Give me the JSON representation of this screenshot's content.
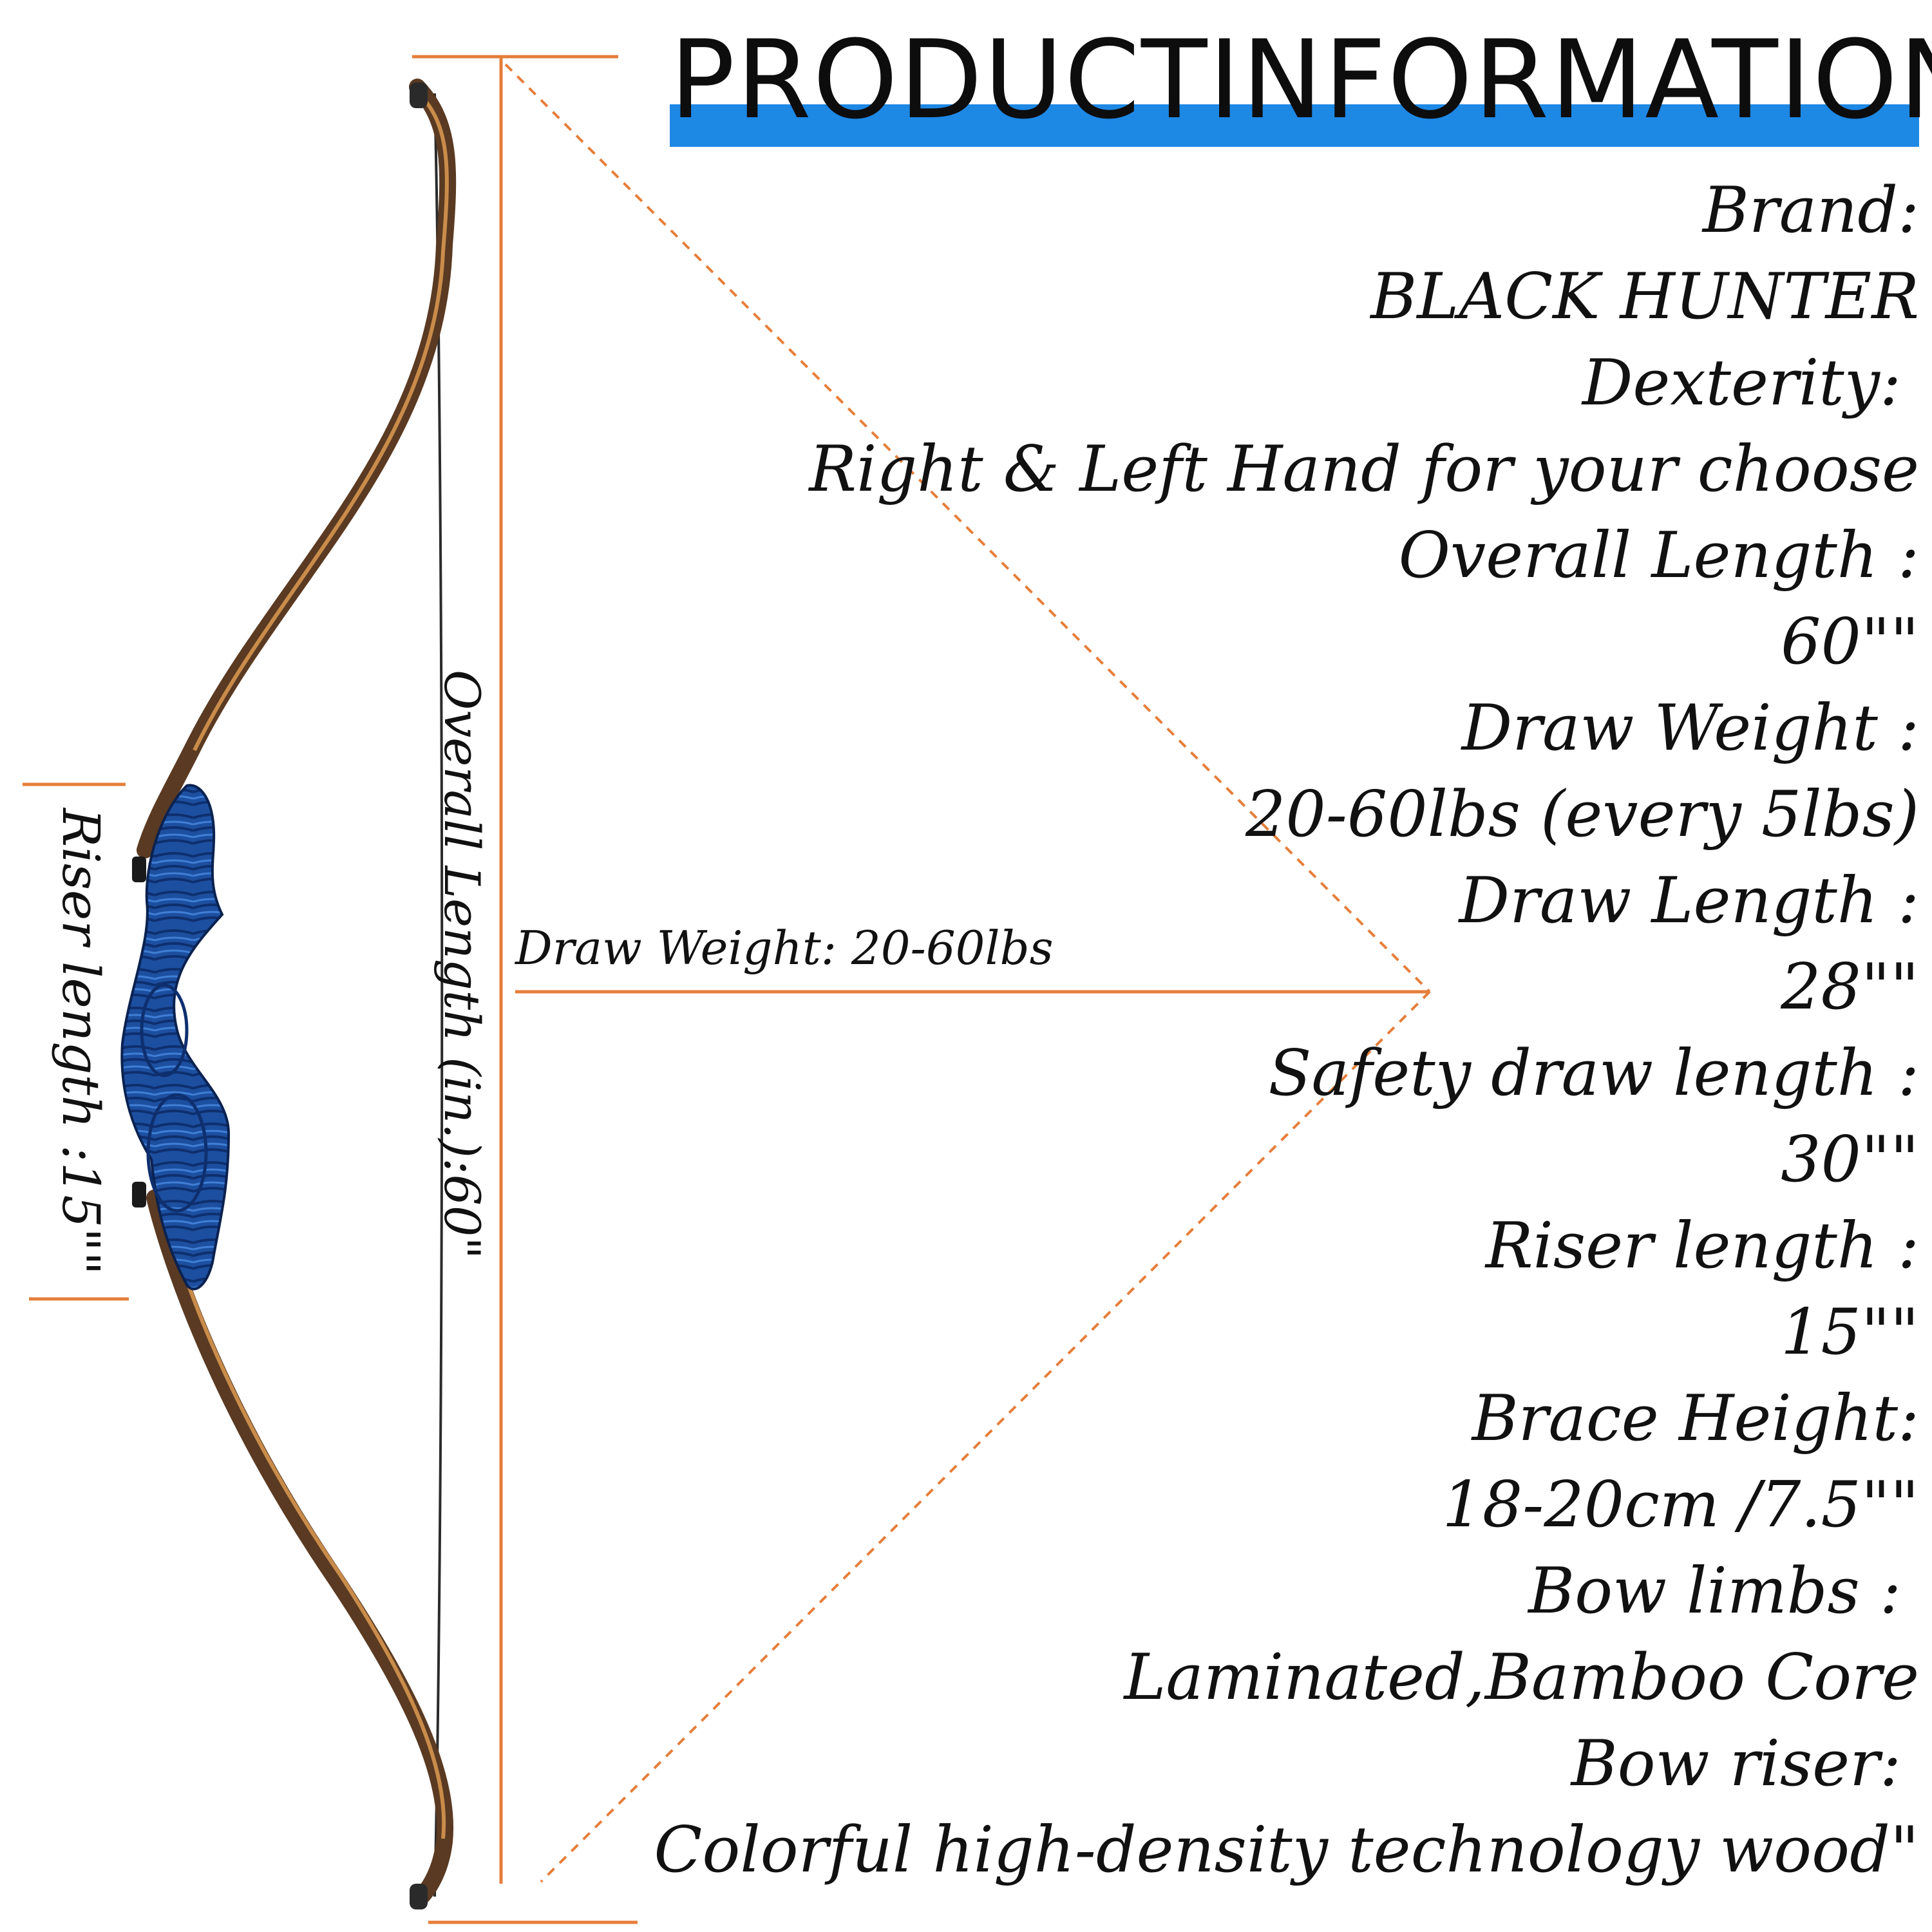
{
  "title": "PRODUCTINFORMATION",
  "colors": {
    "title_bar": "#1e88e5",
    "dimension_lines": "#e67e3a",
    "riser_wood": "#1d4fa0",
    "limb_wood": "#8a5a32",
    "text": "#111111"
  },
  "specs": [
    {
      "label": "Brand:",
      "value": "BLACK HUNTER"
    },
    {
      "label": "Dexterity: ",
      "value": "Right & Left Hand for your choose"
    },
    {
      "label": "Overall Length :",
      "value": "60\"\""
    },
    {
      "label": "Draw Weight :",
      "value": "20-60lbs (every 5lbs)"
    },
    {
      "label": "Draw Length :",
      "value": "28\"\""
    },
    {
      "label": "Safety draw length :",
      "value": "30\"\""
    },
    {
      "label": "Riser length :",
      "value": "15\"\""
    },
    {
      "label": "Brace Height:",
      "value": "18-20cm /7.5\"\""
    },
    {
      "label": "Bow limbs : ",
      "value": "Laminated,Bamboo Core"
    },
    {
      "label": "Bow riser: ",
      "value": "Colorful high-density technology wood\""
    }
  ],
  "diagram": {
    "overall_length_label": "Overall Length (in.):60\"",
    "riser_length_label": "Riser length :15\"\"",
    "draw_weight_label": "Draw Weight: 20-60lbs",
    "image": "recurve-bow-blue-riser"
  }
}
